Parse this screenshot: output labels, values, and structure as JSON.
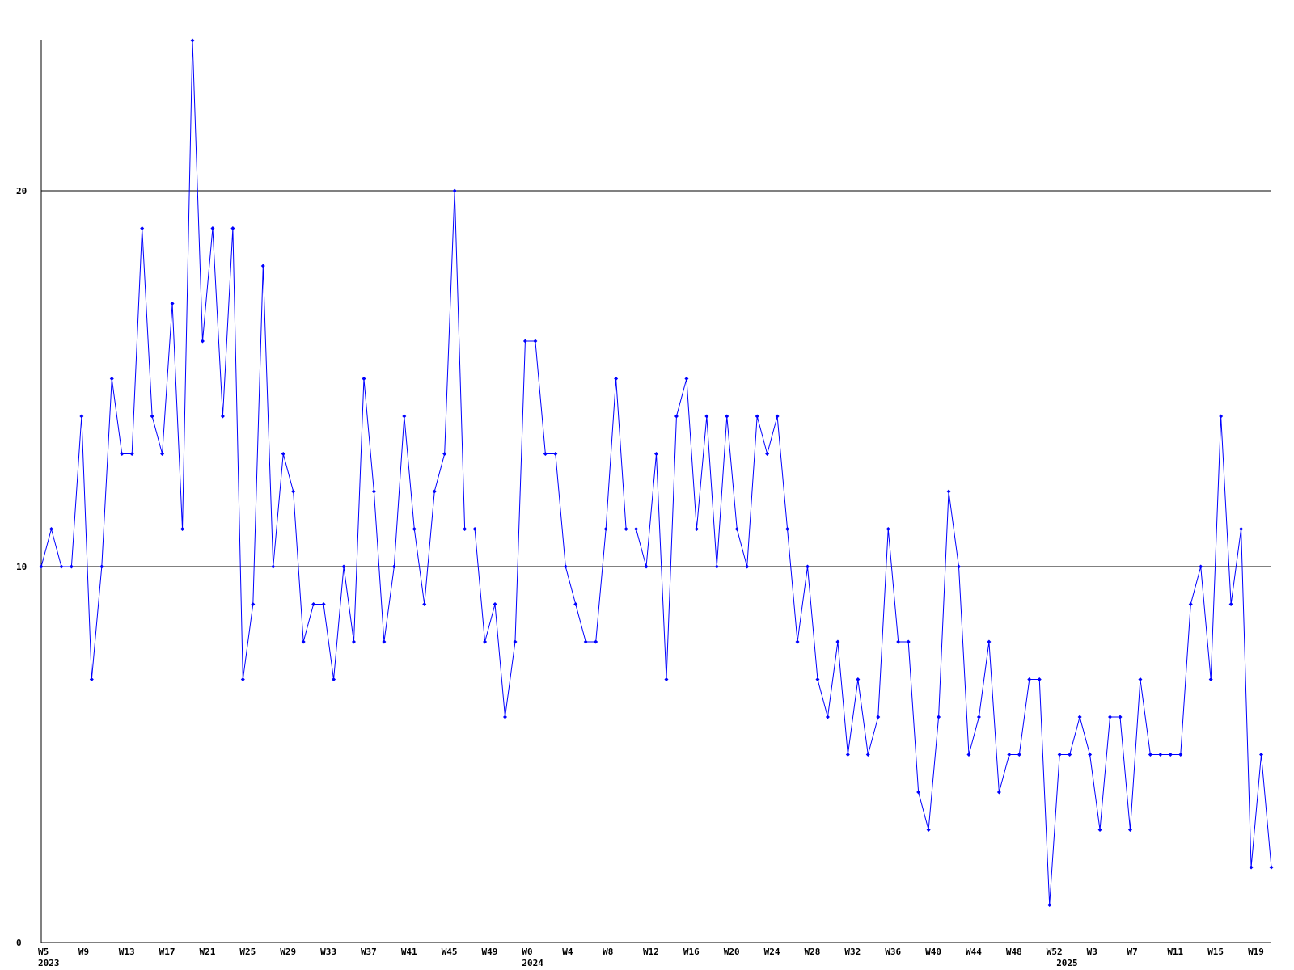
{
  "chart_data": {
    "type": "line",
    "categories": [
      "W5",
      null,
      null,
      null,
      "W9",
      null,
      null,
      null,
      "W13",
      null,
      null,
      null,
      "W17",
      null,
      null,
      null,
      "W21",
      null,
      null,
      null,
      "W25",
      null,
      null,
      null,
      "W29",
      null,
      null,
      null,
      "W33",
      null,
      null,
      null,
      "W37",
      null,
      null,
      null,
      "W41",
      null,
      null,
      null,
      "W45",
      null,
      null,
      null,
      "W49",
      null,
      null,
      null,
      "W0",
      null,
      null,
      null,
      "W4",
      null,
      null,
      null,
      "W8",
      null,
      null,
      null,
      "W12",
      null,
      null,
      null,
      "W16",
      null,
      null,
      null,
      "W20",
      null,
      null,
      null,
      "W24",
      null,
      null,
      null,
      "W28",
      null,
      null,
      null,
      "W32",
      null,
      null,
      null,
      "W36",
      null,
      null,
      null,
      "W40",
      null,
      null,
      null,
      "W44",
      null,
      null,
      null,
      "W48",
      null,
      null,
      null,
      "W52",
      null,
      null,
      null,
      "W3",
      null,
      null,
      null,
      "W7",
      null,
      null,
      null,
      "W11",
      null,
      null,
      null,
      "W15",
      null,
      null,
      null,
      "W19",
      null,
      null
    ],
    "category_years": [
      "2023",
      null,
      null,
      null,
      null,
      null,
      null,
      null,
      null,
      null,
      null,
      null,
      null,
      null,
      null,
      null,
      null,
      null,
      null,
      null,
      null,
      null,
      null,
      null,
      null,
      null,
      null,
      null,
      null,
      null,
      null,
      null,
      null,
      null,
      null,
      null,
      null,
      null,
      null,
      null,
      null,
      null,
      null,
      null,
      null,
      null,
      null,
      null,
      "2024",
      null,
      null,
      null,
      null,
      null,
      null,
      null,
      null,
      null,
      null,
      null,
      null,
      null,
      null,
      null,
      null,
      null,
      null,
      null,
      null,
      null,
      null,
      null,
      null,
      null,
      null,
      null,
      null,
      null,
      null,
      null,
      null,
      null,
      null,
      null,
      null,
      null,
      null,
      null,
      null,
      null,
      null,
      null,
      null,
      null,
      null,
      null,
      null,
      null,
      null,
      null,
      null,
      "2025",
      null,
      null,
      null,
      null,
      null,
      null,
      null,
      null,
      null,
      null,
      null,
      null,
      null,
      null,
      null,
      null,
      null,
      null,
      null,
      null,
      null
    ],
    "series": [
      {
        "color": "#0000ff",
        "values": [
          10,
          11,
          10,
          10,
          14,
          7,
          10,
          15,
          13,
          13,
          19,
          14,
          13,
          17,
          11,
          24,
          16,
          19,
          14,
          19,
          7,
          9,
          18,
          10,
          13,
          12,
          8,
          9,
          9,
          7,
          10,
          8,
          15,
          12,
          8,
          10,
          14,
          11,
          9,
          12,
          13,
          20,
          11,
          11,
          8,
          9,
          6,
          8,
          16,
          16,
          13,
          13,
          10,
          9,
          8,
          8,
          11,
          15,
          11,
          11,
          10,
          13,
          7,
          14,
          15,
          11,
          14,
          10,
          14,
          11,
          10,
          14,
          13,
          14,
          11,
          8,
          10,
          7,
          6,
          8,
          5,
          7,
          5,
          6,
          11,
          8,
          8,
          4,
          3,
          6,
          12,
          10,
          5,
          6,
          8,
          4,
          5,
          5,
          7,
          7,
          1,
          5,
          5,
          6,
          5,
          3,
          6,
          6,
          3,
          7,
          5,
          5,
          5,
          5,
          9,
          10,
          7,
          14,
          9,
          11,
          2,
          5,
          2
        ]
      }
    ],
    "ylim": [
      0,
      24
    ],
    "yticks": [
      0,
      10,
      20
    ],
    "grid": true
  }
}
